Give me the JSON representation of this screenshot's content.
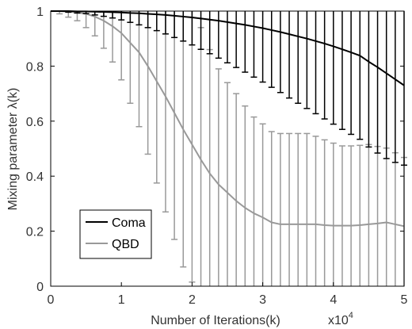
{
  "chart_data": {
    "type": "line",
    "title": "",
    "xlabel": "Number of Iterations(k)",
    "ylabel": "Mixing parameter λ(k)",
    "x_multiplier_label": "x10",
    "x_multiplier_exponent": "4",
    "xlim": [
      0,
      5
    ],
    "ylim": [
      0,
      1
    ],
    "x_ticks": [
      "0",
      "1",
      "2",
      "3",
      "4",
      "5"
    ],
    "y_ticks": [
      "0",
      "0.2",
      "0.4",
      "0.6",
      "0.8",
      "1"
    ],
    "grid": false,
    "legend_position": "lower-left",
    "x": [
      0,
      0.125,
      0.25,
      0.375,
      0.5,
      0.625,
      0.75,
      0.875,
      1,
      1.125,
      1.25,
      1.375,
      1.5,
      1.625,
      1.75,
      1.875,
      2,
      2.125,
      2.25,
      2.375,
      2.5,
      2.625,
      2.75,
      2.875,
      3,
      3.125,
      3.25,
      3.375,
      3.5,
      3.625,
      3.75,
      3.875,
      4,
      4.125,
      4.25,
      4.375,
      4.5,
      4.625,
      4.75,
      4.875,
      5
    ],
    "series": [
      {
        "name": "Coma",
        "color": "#000000",
        "values": [
          1.0,
          1.0,
          1.0,
          0.999,
          0.999,
          0.998,
          0.997,
          0.996,
          0.995,
          0.993,
          0.992,
          0.99,
          0.988,
          0.986,
          0.983,
          0.98,
          0.977,
          0.973,
          0.969,
          0.965,
          0.96,
          0.955,
          0.95,
          0.944,
          0.938,
          0.931,
          0.924,
          0.916,
          0.908,
          0.9,
          0.891,
          0.882,
          0.872,
          0.861,
          0.85,
          0.838,
          0.816,
          0.796,
          0.774,
          0.752,
          0.73
        ],
        "error": [
          0.0,
          0.002,
          0.004,
          0.006,
          0.008,
          0.012,
          0.016,
          0.021,
          0.027,
          0.034,
          0.042,
          0.05,
          0.059,
          0.069,
          0.079,
          0.089,
          0.1,
          0.112,
          0.124,
          0.136,
          0.148,
          0.16,
          0.172,
          0.184,
          0.196,
          0.208,
          0.22,
          0.232,
          0.243,
          0.254,
          0.264,
          0.274,
          0.283,
          0.291,
          0.298,
          0.304,
          0.31,
          0.312,
          0.31,
          0.302,
          0.29
        ]
      },
      {
        "name": "QBD",
        "color": "#999999",
        "values": [
          1.0,
          1.0,
          0.998,
          0.995,
          0.99,
          0.98,
          0.965,
          0.945,
          0.92,
          0.885,
          0.85,
          0.8,
          0.745,
          0.69,
          0.63,
          0.57,
          0.515,
          0.46,
          0.41,
          0.37,
          0.34,
          0.31,
          0.285,
          0.265,
          0.25,
          0.232,
          0.225,
          0.225,
          0.225,
          0.225,
          0.225,
          0.222,
          0.22,
          0.22,
          0.22,
          0.222,
          0.225,
          0.228,
          0.232,
          0.225,
          0.218
        ],
        "error": [
          0.0,
          0.01,
          0.02,
          0.03,
          0.05,
          0.07,
          0.1,
          0.13,
          0.17,
          0.22,
          0.27,
          0.32,
          0.37,
          0.42,
          0.46,
          0.5,
          0.5,
          0.48,
          0.45,
          0.42,
          0.4,
          0.39,
          0.37,
          0.35,
          0.34,
          0.33,
          0.33,
          0.33,
          0.33,
          0.33,
          0.32,
          0.31,
          0.3,
          0.29,
          0.29,
          0.29,
          0.29,
          0.28,
          0.27,
          0.26,
          0.25
        ]
      }
    ]
  }
}
